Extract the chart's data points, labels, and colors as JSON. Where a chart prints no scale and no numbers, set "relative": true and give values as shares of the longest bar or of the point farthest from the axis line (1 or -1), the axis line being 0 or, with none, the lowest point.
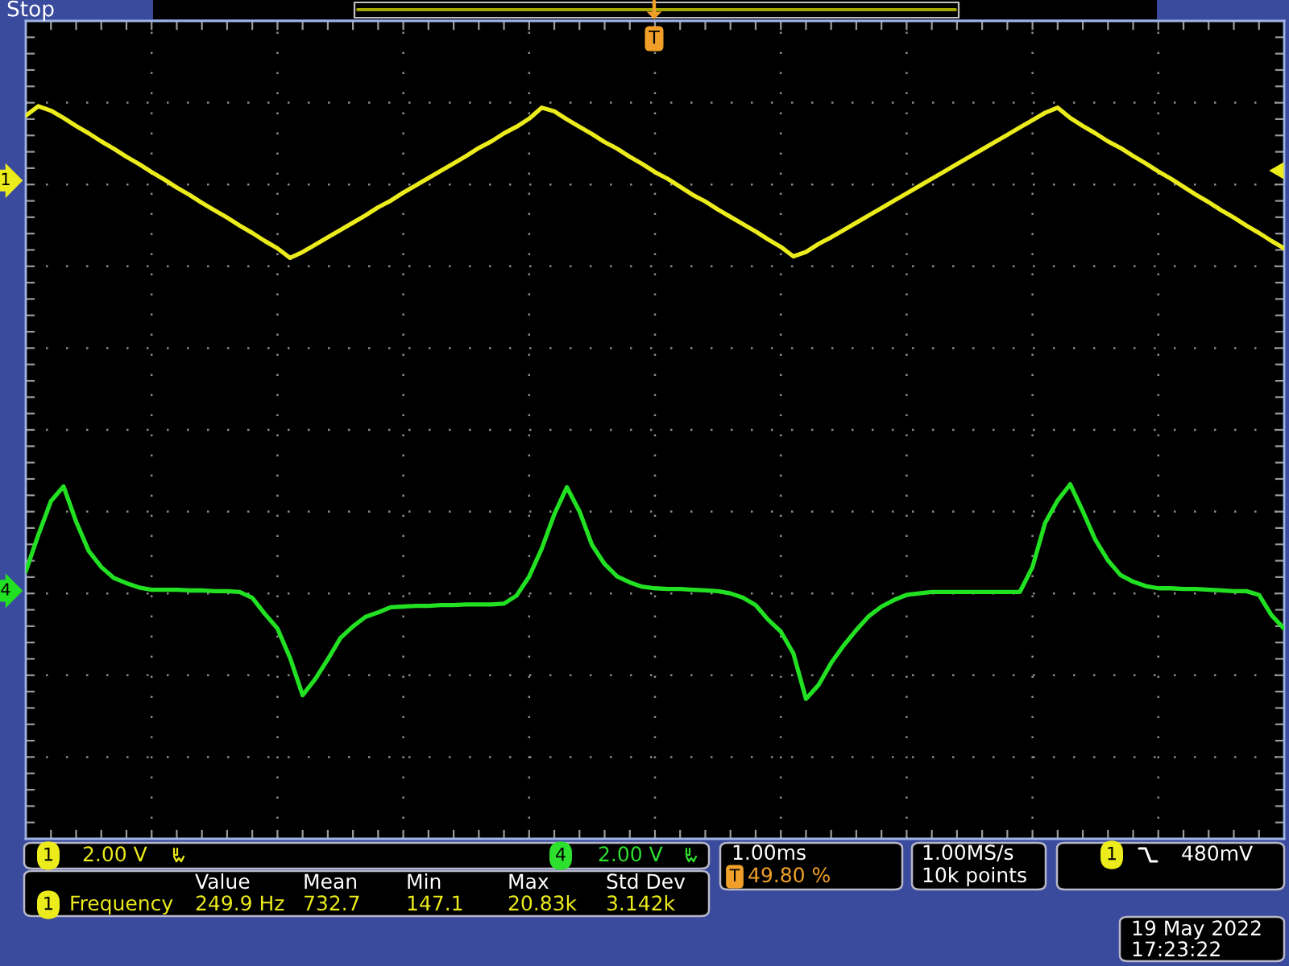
{
  "chart_data": {
    "type": "line",
    "relative": true,
    "grid": true,
    "categories": [
      null,
      null,
      null,
      null,
      null,
      null,
      null,
      null,
      null,
      null,
      null,
      null,
      null,
      null,
      null,
      null,
      null,
      null,
      null,
      null,
      null,
      null,
      null,
      null,
      null,
      null,
      null,
      null,
      null,
      null,
      null,
      null,
      null,
      null,
      null,
      null,
      null,
      null,
      null,
      null,
      null,
      null,
      null,
      null,
      null,
      null,
      null,
      null,
      null,
      null,
      null,
      null,
      null,
      null,
      null,
      null,
      null,
      null,
      null,
      null,
      null,
      null,
      null,
      null,
      null,
      null,
      null,
      null,
      null,
      null,
      null,
      null,
      null,
      null,
      null,
      null,
      null,
      null,
      null,
      null,
      null,
      null,
      null,
      null,
      null,
      null,
      null,
      null,
      null,
      null,
      null,
      null,
      null,
      null,
      null,
      null,
      null,
      null,
      null,
      null,
      null
    ],
    "series": [
      {
        "name": "1",
        "color": "#ecec1c",
        "values": [
          0.987,
          1.0,
          0.994,
          0.984,
          0.973,
          0.963,
          0.952,
          0.942,
          0.931,
          0.921,
          0.91,
          0.9,
          0.889,
          0.879,
          0.868,
          0.858,
          0.848,
          0.837,
          0.827,
          0.816,
          0.806,
          0.793,
          0.801,
          0.811,
          0.821,
          0.831,
          0.841,
          0.851,
          0.862,
          0.871,
          0.882,
          0.892,
          0.902,
          0.912,
          0.922,
          0.932,
          0.943,
          0.952,
          0.963,
          0.972,
          0.983,
          0.998,
          0.993,
          0.982,
          0.972,
          0.962,
          0.951,
          0.942,
          0.931,
          0.921,
          0.91,
          0.901,
          0.89,
          0.879,
          0.87,
          0.859,
          0.849,
          0.839,
          0.829,
          0.818,
          0.808,
          0.795,
          0.801,
          0.812,
          0.821,
          0.831,
          0.841,
          0.851,
          0.861,
          0.871,
          0.881,
          0.891,
          0.901,
          0.911,
          0.921,
          0.931,
          0.941,
          0.951,
          0.961,
          0.971,
          0.981,
          0.991,
          0.998,
          0.984,
          0.973,
          0.963,
          0.952,
          0.943,
          0.932,
          0.922,
          0.911,
          0.901,
          0.89,
          0.879,
          0.869,
          0.858,
          0.848,
          0.837,
          0.827,
          0.816,
          0.806
        ]
      },
      {
        "name": "4",
        "color": "#22e022",
        "values": [
          0.365,
          0.415,
          0.461,
          0.481,
          0.433,
          0.393,
          0.371,
          0.356,
          0.349,
          0.343,
          0.34,
          0.34,
          0.34,
          0.339,
          0.339,
          0.338,
          0.338,
          0.337,
          0.329,
          0.307,
          0.287,
          0.247,
          0.196,
          0.218,
          0.245,
          0.274,
          0.29,
          0.303,
          0.309,
          0.316,
          0.317,
          0.318,
          0.318,
          0.319,
          0.319,
          0.32,
          0.32,
          0.32,
          0.321,
          0.332,
          0.358,
          0.396,
          0.443,
          0.48,
          0.447,
          0.401,
          0.375,
          0.358,
          0.35,
          0.344,
          0.342,
          0.341,
          0.341,
          0.34,
          0.339,
          0.338,
          0.335,
          0.329,
          0.319,
          0.299,
          0.283,
          0.253,
          0.191,
          0.21,
          0.24,
          0.264,
          0.285,
          0.304,
          0.317,
          0.326,
          0.333,
          0.335,
          0.337,
          0.337,
          0.337,
          0.337,
          0.337,
          0.337,
          0.337,
          0.337,
          0.371,
          0.431,
          0.462,
          0.484,
          0.447,
          0.408,
          0.38,
          0.36,
          0.351,
          0.345,
          0.342,
          0.342,
          0.341,
          0.341,
          0.34,
          0.339,
          0.338,
          0.338,
          0.333,
          0.305,
          0.287
        ]
      }
    ],
    "annotations": [
      "Stop",
      "1",
      "2.00 V",
      "4",
      "2.00 V",
      "1.00ms",
      "T",
      "49.80 %",
      "1.00MS/s",
      "10k points",
      "1",
      "480mV",
      "Value",
      "Mean",
      "Min",
      "Max",
      "Std Dev",
      "1",
      "Frequency",
      "249.9 Hz",
      "732.7",
      "147.1",
      "20.83k",
      "3.142k",
      "19 May 2022",
      "17:23:22",
      "T"
    ]
  }
}
